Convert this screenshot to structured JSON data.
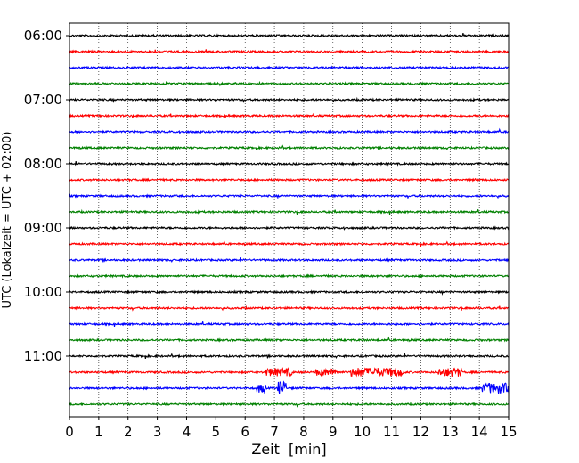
{
  "chart_data": {
    "type": "line",
    "title": "",
    "xlabel": "Zeit  [min]",
    "ylabel": "UTC (Lokalzeit = UTC + 02:00)",
    "xlim": [
      0,
      15
    ],
    "x_ticks": [
      "0",
      "1",
      "2",
      "3",
      "4",
      "5",
      "6",
      "7",
      "8",
      "9",
      "10",
      "11",
      "12",
      "13",
      "14",
      "15"
    ],
    "y_tick_labels": [
      "06:00",
      "07:00",
      "08:00",
      "09:00",
      "10:00",
      "11:00"
    ],
    "grid": "vertical dotted lines at each minute",
    "trace_interval_min": 15,
    "series_colors": [
      "#000000",
      "#ff0000",
      "#0000ff",
      "#008000"
    ],
    "traces": [
      {
        "start": "06:00",
        "color": "#000000"
      },
      {
        "start": "06:15",
        "color": "#ff0000"
      },
      {
        "start": "06:30",
        "color": "#0000ff"
      },
      {
        "start": "06:45",
        "color": "#008000"
      },
      {
        "start": "07:00",
        "color": "#000000"
      },
      {
        "start": "07:15",
        "color": "#ff0000"
      },
      {
        "start": "07:30",
        "color": "#0000ff"
      },
      {
        "start": "07:45",
        "color": "#008000"
      },
      {
        "start": "08:00",
        "color": "#000000"
      },
      {
        "start": "08:15",
        "color": "#ff0000"
      },
      {
        "start": "08:30",
        "color": "#0000ff"
      },
      {
        "start": "08:45",
        "color": "#008000"
      },
      {
        "start": "09:00",
        "color": "#000000"
      },
      {
        "start": "09:15",
        "color": "#ff0000"
      },
      {
        "start": "09:30",
        "color": "#0000ff"
      },
      {
        "start": "09:45",
        "color": "#008000"
      },
      {
        "start": "10:00",
        "color": "#000000"
      },
      {
        "start": "10:15",
        "color": "#ff0000"
      },
      {
        "start": "10:30",
        "color": "#0000ff"
      },
      {
        "start": "10:45",
        "color": "#008000"
      },
      {
        "start": "11:00",
        "color": "#000000"
      },
      {
        "start": "11:15",
        "color": "#ff0000"
      },
      {
        "start": "11:30",
        "color": "#0000ff"
      },
      {
        "start": "11:45",
        "color": "#008000"
      }
    ]
  }
}
